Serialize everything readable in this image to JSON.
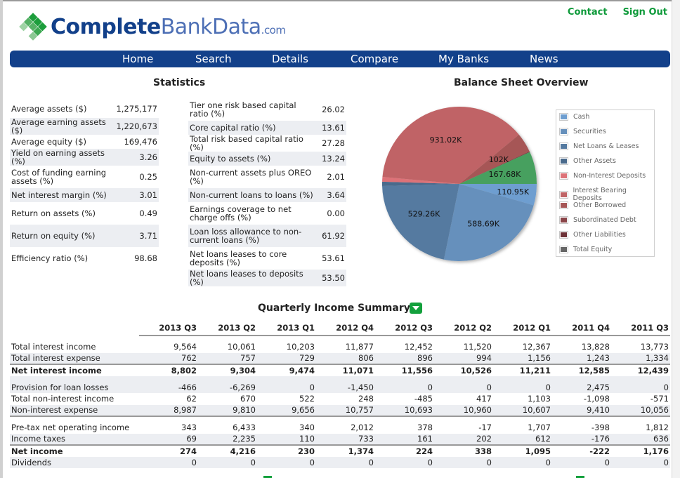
{
  "header": {
    "logo": {
      "part1": "Complete",
      "part2": "BankData",
      "part3": ".com"
    },
    "links": [
      {
        "label": "Contact"
      },
      {
        "label": "Sign Out"
      }
    ]
  },
  "nav": {
    "items": [
      {
        "label": "Home"
      },
      {
        "label": "Search"
      },
      {
        "label": "Details"
      },
      {
        "label": "Compare"
      },
      {
        "label": "My Banks"
      },
      {
        "label": "News"
      }
    ]
  },
  "statistics": {
    "title": "Statistics",
    "left": [
      {
        "label": "Average assets ($)",
        "value": "1,275,177"
      },
      {
        "label": "Average earning assets ($)",
        "value": "1,220,673"
      },
      {
        "label": "Average equity ($)",
        "value": "169,476"
      },
      {
        "label": "Yield on earning assets (%)",
        "value": "3.26"
      },
      {
        "label": "Cost of funding earning assets (%)",
        "value": "0.25"
      },
      {
        "label": "Net interest margin (%)",
        "value": "3.01"
      },
      {
        "label": "Return on assets (%)",
        "value": "0.49"
      },
      {
        "label": "Return on equity (%)",
        "value": "3.71"
      },
      {
        "label": "Efficiency ratio (%)",
        "value": "98.68"
      }
    ],
    "right": [
      {
        "label": "Tier one risk based capital ratio (%)",
        "value": "26.02"
      },
      {
        "label": "Core capital ratio (%)",
        "value": "13.61"
      },
      {
        "label": "Total risk based capital ratio (%)",
        "value": "27.28"
      },
      {
        "label": "Equity to assets (%)",
        "value": "13.24"
      },
      {
        "label": "Non-current assets plus OREO (%)",
        "value": "2.01"
      },
      {
        "label": "Non-current loans to loans (%)",
        "value": "3.64"
      },
      {
        "label": "Earnings coverage to net charge offs (%)",
        "value": "0.00"
      },
      {
        "label": "Loan loss allowance to non-current loans (%)",
        "value": "61.92"
      },
      {
        "label": "Net loans leases to core deposits (%)",
        "value": "53.61"
      },
      {
        "label": "Net loans leases to deposits (%)",
        "value": "53.50"
      }
    ]
  },
  "chart_data": {
    "type": "pie",
    "title": "Balance Sheet Overview",
    "legend_position": "right",
    "series": [
      {
        "name": "Cash",
        "value": 110.95,
        "label": "110.95K",
        "color": "#6e9ed0",
        "group": "assets"
      },
      {
        "name": "Securities",
        "value": 588.69,
        "label": "588.69K",
        "color": "#6690bc",
        "group": "assets"
      },
      {
        "name": "Net Loans & Leases",
        "value": 529.26,
        "label": "529.26K",
        "color": "#557aa0",
        "group": "assets"
      },
      {
        "name": "Other Assets",
        "value": 22,
        "label": "",
        "color": "#4a6a8c",
        "group": "assets"
      },
      {
        "name": "Non-Interest Deposits",
        "value": 25,
        "label": "",
        "color": "#dd7278",
        "group": "liabilities"
      },
      {
        "name": "Interest Bearing Deposits",
        "value": 931.02,
        "label": "931.02K",
        "color": "#c06466",
        "group": "liabilities"
      },
      {
        "name": "Other Borrowed",
        "value": 102,
        "label": "102K",
        "color": "#a65656",
        "group": "liabilities"
      },
      {
        "name": "Subordinated Debt",
        "value": 0,
        "label": "",
        "color": "#8a4448",
        "group": "liabilities"
      },
      {
        "name": "Other Liabilities",
        "value": 3,
        "label": "",
        "color": "#6e3238",
        "group": "liabilities"
      },
      {
        "name": "Total Equity",
        "value": 167.68,
        "label": "167.68K",
        "color": "#47a05e",
        "group": "liabilities"
      }
    ],
    "legend": [
      {
        "name": "Cash",
        "color": "#6e9ed0"
      },
      {
        "name": "Securities",
        "color": "#6690bc"
      },
      {
        "name": "Net Loans & Leases",
        "color": "#557aa0"
      },
      {
        "name": "Other Assets",
        "color": "#4a6a8c"
      },
      {
        "name": "Non-Interest Deposits",
        "color": "#dd7278"
      },
      {
        "name": "Interest Bearing Deposits",
        "color": "#c06466"
      },
      {
        "name": "Other Borrowed",
        "color": "#a65656"
      },
      {
        "name": "Subordinated Debt",
        "color": "#8a4448"
      },
      {
        "name": "Other Liabilities",
        "color": "#6e3238"
      },
      {
        "name": "Total Equity",
        "color": "#666666"
      }
    ]
  },
  "quarterly": {
    "title": "Quarterly Income Summary",
    "toggle_icon": "chevron-down-icon",
    "columns": [
      "2013 Q3",
      "2013 Q2",
      "2013 Q1",
      "2012 Q4",
      "2012 Q3",
      "2012 Q2",
      "2012 Q1",
      "2011 Q4",
      "2011 Q3"
    ],
    "groups": [
      [
        {
          "label": "Total interest income",
          "bold": false,
          "values": [
            "9,564",
            "10,061",
            "10,203",
            "11,877",
            "12,452",
            "11,520",
            "12,367",
            "13,828",
            "13,773"
          ]
        },
        {
          "label": "Total interest expense",
          "bold": false,
          "values": [
            "762",
            "757",
            "729",
            "806",
            "896",
            "994",
            "1,156",
            "1,243",
            "1,334"
          ]
        },
        {
          "label": "Net interest income",
          "bold": true,
          "values": [
            "8,802",
            "9,304",
            "9,474",
            "11,071",
            "11,556",
            "10,526",
            "11,211",
            "12,585",
            "12,439"
          ]
        }
      ],
      [
        {
          "label": "Provision for loan losses",
          "bold": false,
          "values": [
            "-466",
            "-6,269",
            "0",
            "-1,450",
            "0",
            "0",
            "0",
            "2,475",
            "0"
          ]
        },
        {
          "label": "Total non-interest income",
          "bold": false,
          "values": [
            "62",
            "670",
            "522",
            "248",
            "-485",
            "417",
            "1,103",
            "-1,098",
            "-571"
          ]
        },
        {
          "label": "Non-interest expense",
          "bold": false,
          "values": [
            "8,987",
            "9,810",
            "9,656",
            "10,757",
            "10,693",
            "10,960",
            "10,607",
            "9,410",
            "10,056"
          ]
        }
      ],
      [
        {
          "label": "Pre-tax net operating income",
          "bold": false,
          "values": [
            "343",
            "6,433",
            "340",
            "2,012",
            "378",
            "-17",
            "1,707",
            "-398",
            "1,812"
          ]
        },
        {
          "label": "Income taxes",
          "bold": false,
          "values": [
            "69",
            "2,235",
            "110",
            "733",
            "161",
            "202",
            "612",
            "-176",
            "636"
          ]
        },
        {
          "label": "Net income",
          "bold": true,
          "values": [
            "274",
            "4,216",
            "230",
            "1,374",
            "224",
            "338",
            "1,095",
            "-222",
            "1,176"
          ]
        },
        {
          "label": "Dividends",
          "bold": false,
          "values": [
            "0",
            "0",
            "0",
            "0",
            "0",
            "0",
            "0",
            "0",
            "0"
          ]
        }
      ]
    ]
  }
}
